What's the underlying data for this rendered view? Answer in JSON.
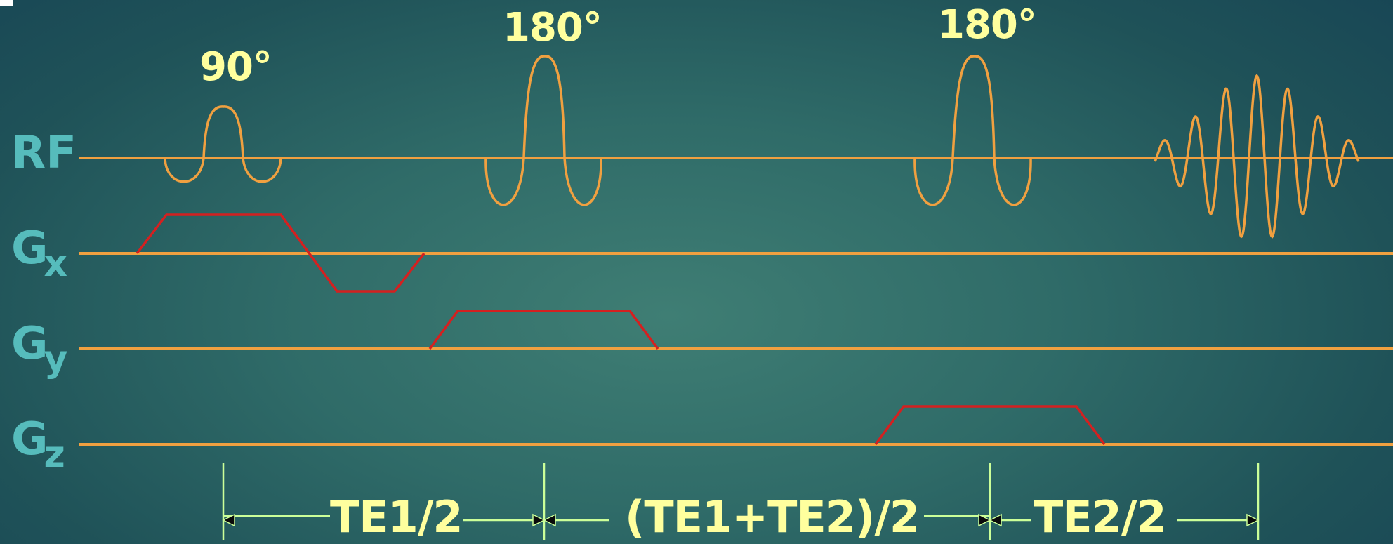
{
  "rows": {
    "rf": "RF",
    "gx": {
      "main": "G",
      "sub": "x"
    },
    "gy": {
      "main": "G",
      "sub": "y"
    },
    "gz": {
      "main": "G",
      "sub": "z"
    }
  },
  "pulses": {
    "p90": "90°",
    "p180a": "180°",
    "p180b": "180°"
  },
  "timing": {
    "te1_half": "TE1/2",
    "te_mid": "(TE1+TE2)/2",
    "te2_half": "TE2/2"
  },
  "colors": {
    "baseline": "#f0a040",
    "rf_pulse": "#f0a040",
    "gradient": "#d42020",
    "timing": "#ccff99",
    "label_text": "#ffff9e",
    "row_label": "#56bcbc"
  }
}
